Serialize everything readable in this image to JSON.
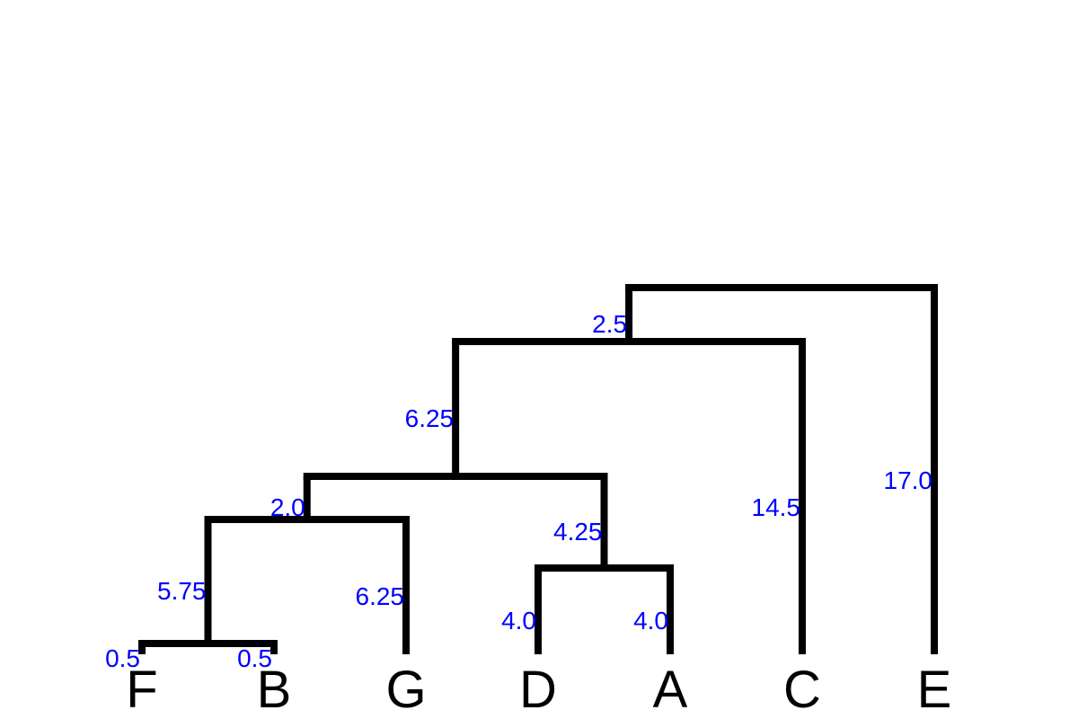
{
  "tree": {
    "leaf_order": [
      "F",
      "B",
      "G",
      "D",
      "A",
      "C",
      "E"
    ],
    "nodes": {
      "F": {
        "parent": "n1",
        "branch_length": "0.5"
      },
      "B": {
        "parent": "n1",
        "branch_length": "0.5"
      },
      "n1": {
        "parent": "n2",
        "branch_length": "5.75"
      },
      "G": {
        "parent": "n2",
        "branch_length": "6.25"
      },
      "n2": {
        "parent": "n4",
        "branch_length": "2.0"
      },
      "D": {
        "parent": "n3",
        "branch_length": "4.0"
      },
      "A": {
        "parent": "n3",
        "branch_length": "4.0"
      },
      "n3": {
        "parent": "n4",
        "branch_length": "4.25"
      },
      "n4": {
        "parent": "n5",
        "branch_length": "6.25"
      },
      "C": {
        "parent": "n5",
        "branch_length": "14.5"
      },
      "n5": {
        "parent": "root",
        "branch_length": "2.5"
      },
      "E": {
        "parent": "root",
        "branch_length": "17.0"
      },
      "root": {
        "parent": null
      }
    }
  },
  "colors": {
    "branch": "#000000",
    "leaf_label": "#000000",
    "length_label": "#0000ff"
  }
}
